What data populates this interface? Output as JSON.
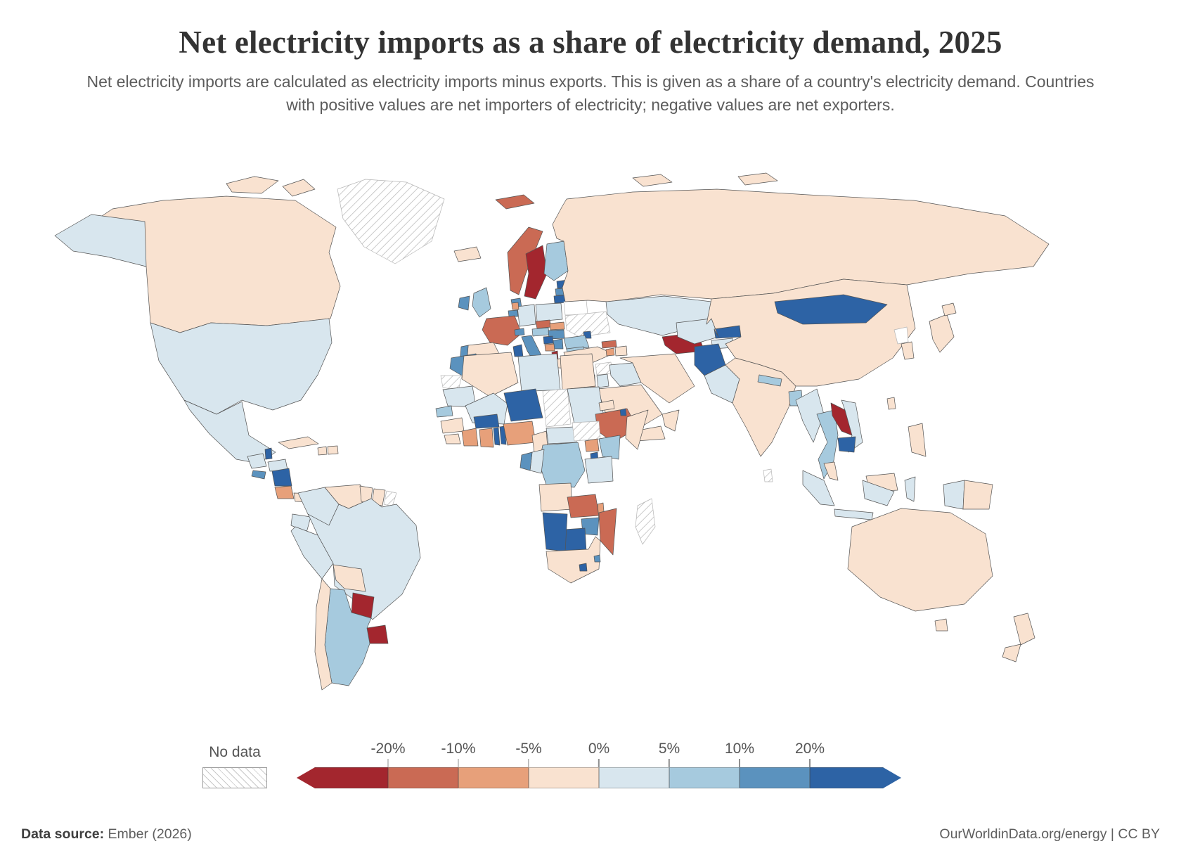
{
  "header": {
    "title": "Net electricity imports as a share of electricity demand, 2025",
    "subtitle": "Net electricity imports are calculated as electricity imports minus exports. This is given as a share of a country's electricity demand. Countries with positive values are net importers of electricity; negative values are net exporters."
  },
  "legend": {
    "no_data_label": "No data",
    "ticks": [
      "-20%",
      "-10%",
      "-5%",
      "0%",
      "5%",
      "10%",
      "20%"
    ],
    "buckets": [
      {
        "label": "< -20%",
        "color": "#a3262e"
      },
      {
        "label": "-20% to -10%",
        "color": "#ca6a54"
      },
      {
        "label": "-10% to -5%",
        "color": "#e7a07a"
      },
      {
        "label": "-5% to 0%",
        "color": "#f9e2d0"
      },
      {
        "label": "0% to 5%",
        "color": "#d8e6ee"
      },
      {
        "label": "5% to 10%",
        "color": "#a6cade"
      },
      {
        "label": "10% to 20%",
        "color": "#5b92be"
      },
      {
        "label": "> 20%",
        "color": "#2d63a5"
      }
    ]
  },
  "footer": {
    "source_label": "Data source:",
    "source_value": "Ember (2026)",
    "attribution": "OurWorldinData.org/energy | CC BY"
  },
  "chart_data": {
    "type": "choropleth",
    "title": "Net electricity imports as a share of electricity demand, 2025",
    "unit": "% of electricity demand",
    "year": 2025,
    "legend_ticks": [
      "-20%",
      "-10%",
      "-5%",
      "0%",
      "5%",
      "10%",
      "20%"
    ],
    "no_data_style": "hatched",
    "countries": [
      {
        "name": "Canada",
        "value": "-5% to 0%"
      },
      {
        "name": "United States",
        "value": "0% to 5%"
      },
      {
        "name": "Greenland",
        "value": "No data"
      },
      {
        "name": "Mexico",
        "value": "0% to 5%"
      },
      {
        "name": "Guatemala",
        "value": "0% to 5%"
      },
      {
        "name": "Belize",
        "value": "> 20%"
      },
      {
        "name": "Honduras",
        "value": "0% to 5%"
      },
      {
        "name": "El Salvador",
        "value": "10% to 20%"
      },
      {
        "name": "Nicaragua",
        "value": "> 20%"
      },
      {
        "name": "Costa Rica",
        "value": "-10% to -5%"
      },
      {
        "name": "Panama",
        "value": "-5% to 0%"
      },
      {
        "name": "Cuba",
        "value": "-5% to 0%"
      },
      {
        "name": "Haiti",
        "value": "-5% to 0%"
      },
      {
        "name": "Dominican Republic",
        "value": "-5% to 0%"
      },
      {
        "name": "Colombia",
        "value": "0% to 5%"
      },
      {
        "name": "Venezuela",
        "value": "-5% to 0%"
      },
      {
        "name": "Guyana",
        "value": "-5% to 0%"
      },
      {
        "name": "Suriname",
        "value": "-5% to 0%"
      },
      {
        "name": "French Guiana",
        "value": "No data"
      },
      {
        "name": "Ecuador",
        "value": "0% to 5%"
      },
      {
        "name": "Peru",
        "value": "0% to 5%"
      },
      {
        "name": "Brazil",
        "value": "0% to 5%"
      },
      {
        "name": "Bolivia",
        "value": "-5% to 0%"
      },
      {
        "name": "Paraguay",
        "value": "< -20%"
      },
      {
        "name": "Uruguay",
        "value": "< -20%"
      },
      {
        "name": "Argentina",
        "value": "5% to 10%"
      },
      {
        "name": "Chile",
        "value": "-5% to 0%"
      },
      {
        "name": "Iceland",
        "value": "-5% to 0%"
      },
      {
        "name": "Norway",
        "value": "-20% to -10%"
      },
      {
        "name": "Sweden",
        "value": "< -20%"
      },
      {
        "name": "Finland",
        "value": "5% to 10%"
      },
      {
        "name": "Denmark",
        "value": "10% to 20%"
      },
      {
        "name": "United Kingdom",
        "value": "5% to 10%"
      },
      {
        "name": "Ireland",
        "value": "10% to 20%"
      },
      {
        "name": "Estonia",
        "value": "> 20%"
      },
      {
        "name": "Latvia",
        "value": "10% to 20%"
      },
      {
        "name": "Lithuania",
        "value": "> 20%"
      },
      {
        "name": "Belarus",
        "value": "No data"
      },
      {
        "name": "Poland",
        "value": "0% to 5%"
      },
      {
        "name": "Germany",
        "value": "0% to 5%"
      },
      {
        "name": "Netherlands",
        "value": "-10% to -5%"
      },
      {
        "name": "Belgium",
        "value": "10% to 20%"
      },
      {
        "name": "France",
        "value": "-20% to -10%"
      },
      {
        "name": "Switzerland",
        "value": "10% to 20%"
      },
      {
        "name": "Czechia",
        "value": "-20% to -10%"
      },
      {
        "name": "Austria",
        "value": "5% to 10%"
      },
      {
        "name": "Slovakia",
        "value": "-10% to -5%"
      },
      {
        "name": "Hungary",
        "value": "10% to 20%"
      },
      {
        "name": "Ukraine",
        "value": "No data"
      },
      {
        "name": "Moldova",
        "value": "> 20%"
      },
      {
        "name": "Romania",
        "value": "5% to 10%"
      },
      {
        "name": "Bulgaria",
        "value": "5% to 10%"
      },
      {
        "name": "Serbia",
        "value": "10% to 20%"
      },
      {
        "name": "Croatia",
        "value": "> 20%"
      },
      {
        "name": "Bosnia and Herzegovina",
        "value": "-10% to -5%"
      },
      {
        "name": "Albania",
        "value": "< -20%"
      },
      {
        "name": "Greece",
        "value": "-5% to 0%"
      },
      {
        "name": "Spain",
        "value": "-5% to 0%"
      },
      {
        "name": "Portugal",
        "value": "10% to 20%"
      },
      {
        "name": "Italy",
        "value": "10% to 20%"
      },
      {
        "name": "Russia",
        "value": "-5% to 0%"
      },
      {
        "name": "Kazakhstan",
        "value": "0% to 5%"
      },
      {
        "name": "Turkey",
        "value": "-5% to 0%"
      },
      {
        "name": "Georgia",
        "value": "-20% to -10%"
      },
      {
        "name": "Armenia",
        "value": "-10% to -5%"
      },
      {
        "name": "Azerbaijan",
        "value": "-5% to 0%"
      },
      {
        "name": "Syria",
        "value": "No data"
      },
      {
        "name": "Israel",
        "value": "-10% to -5%"
      },
      {
        "name": "Jordan",
        "value": "0% to 5%"
      },
      {
        "name": "Iraq",
        "value": "0% to 5%"
      },
      {
        "name": "Saudi Arabia",
        "value": "-5% to 0%"
      },
      {
        "name": "Yemen",
        "value": "-5% to 0%"
      },
      {
        "name": "Oman",
        "value": "-5% to 0%"
      },
      {
        "name": "Iran",
        "value": "-5% to 0%"
      },
      {
        "name": "Turkmenistan",
        "value": "< -20%"
      },
      {
        "name": "Uzbekistan",
        "value": "0% to 5%"
      },
      {
        "name": "Kyrgyzstan",
        "value": "> 20%"
      },
      {
        "name": "Tajikistan",
        "value": "0% to 5%"
      },
      {
        "name": "Afghanistan",
        "value": "> 20%"
      },
      {
        "name": "Pakistan",
        "value": "0% to 5%"
      },
      {
        "name": "India",
        "value": "-5% to 0%"
      },
      {
        "name": "Nepal",
        "value": "5% to 10%"
      },
      {
        "name": "Bangladesh",
        "value": "5% to 10%"
      },
      {
        "name": "Sri Lanka",
        "value": "No data"
      },
      {
        "name": "China",
        "value": "-5% to 0%"
      },
      {
        "name": "Mongolia",
        "value": "> 20%"
      },
      {
        "name": "Myanmar",
        "value": "0% to 5%"
      },
      {
        "name": "Thailand",
        "value": "5% to 10%"
      },
      {
        "name": "Laos",
        "value": "< -20%"
      },
      {
        "name": "Vietnam",
        "value": "0% to 5%"
      },
      {
        "name": "Cambodia",
        "value": "> 20%"
      },
      {
        "name": "Malaysia",
        "value": "-5% to 0%"
      },
      {
        "name": "Indonesia",
        "value": "0% to 5%"
      },
      {
        "name": "Papua New Guinea",
        "value": "-5% to 0%"
      },
      {
        "name": "Philippines",
        "value": "-5% to 0%"
      },
      {
        "name": "Taiwan",
        "value": "-5% to 0%"
      },
      {
        "name": "South Korea",
        "value": "-5% to 0%"
      },
      {
        "name": "North Korea",
        "value": "No data"
      },
      {
        "name": "Japan",
        "value": "-5% to 0%"
      },
      {
        "name": "Australia",
        "value": "-5% to 0%"
      },
      {
        "name": "New Zealand",
        "value": "-5% to 0%"
      },
      {
        "name": "Morocco",
        "value": "10% to 20%"
      },
      {
        "name": "Western Sahara",
        "value": "No data"
      },
      {
        "name": "Algeria",
        "value": "-5% to 0%"
      },
      {
        "name": "Tunisia",
        "value": "> 20%"
      },
      {
        "name": "Libya",
        "value": "0% to 5%"
      },
      {
        "name": "Egypt",
        "value": "-5% to 0%"
      },
      {
        "name": "Mauritania",
        "value": "0% to 5%"
      },
      {
        "name": "Mali",
        "value": "0% to 5%"
      },
      {
        "name": "Niger",
        "value": "> 20%"
      },
      {
        "name": "Chad",
        "value": "No data"
      },
      {
        "name": "Sudan",
        "value": "0% to 5%"
      },
      {
        "name": "South Sudan",
        "value": "No data"
      },
      {
        "name": "Eritrea",
        "value": "-5% to 0%"
      },
      {
        "name": "Ethiopia",
        "value": "-20% to -10%"
      },
      {
        "name": "Djibouti",
        "value": "> 20%"
      },
      {
        "name": "Somalia",
        "value": "-5% to 0%"
      },
      {
        "name": "Senegal",
        "value": "5% to 10%"
      },
      {
        "name": "Guinea",
        "value": "-5% to 0%"
      },
      {
        "name": "Liberia",
        "value": "-5% to 0%"
      },
      {
        "name": "Cote d'Ivoire",
        "value": "-10% to -5%"
      },
      {
        "name": "Ghana",
        "value": "-10% to -5%"
      },
      {
        "name": "Togo",
        "value": "> 20%"
      },
      {
        "name": "Benin",
        "value": "> 20%"
      },
      {
        "name": "Burkina Faso",
        "value": "> 20%"
      },
      {
        "name": "Nigeria",
        "value": "-10% to -5%"
      },
      {
        "name": "Cameroon",
        "value": "-5% to 0%"
      },
      {
        "name": "Central African Republic",
        "value": "0% to 5%"
      },
      {
        "name": "Uganda",
        "value": "-10% to -5%"
      },
      {
        "name": "Kenya",
        "value": "5% to 10%"
      },
      {
        "name": "Rwanda",
        "value": "> 20%"
      },
      {
        "name": "Democratic Republic of Congo",
        "value": "5% to 10%"
      },
      {
        "name": "Congo",
        "value": "0% to 5%"
      },
      {
        "name": "Gabon",
        "value": "10% to 20%"
      },
      {
        "name": "Tanzania",
        "value": "0% to 5%"
      },
      {
        "name": "Angola",
        "value": "-5% to 0%"
      },
      {
        "name": "Zambia",
        "value": "-20% to -10%"
      },
      {
        "name": "Malawi",
        "value": "-10% to -5%"
      },
      {
        "name": "Mozambique",
        "value": "-20% to -10%"
      },
      {
        "name": "Zimbabwe",
        "value": "10% to 20%"
      },
      {
        "name": "Botswana",
        "value": "> 20%"
      },
      {
        "name": "Namibia",
        "value": "> 20%"
      },
      {
        "name": "South Africa",
        "value": "-5% to 0%"
      },
      {
        "name": "Lesotho",
        "value": "> 20%"
      },
      {
        "name": "Eswatini",
        "value": "10% to 20%"
      },
      {
        "name": "Madagascar",
        "value": "No data"
      }
    ]
  }
}
